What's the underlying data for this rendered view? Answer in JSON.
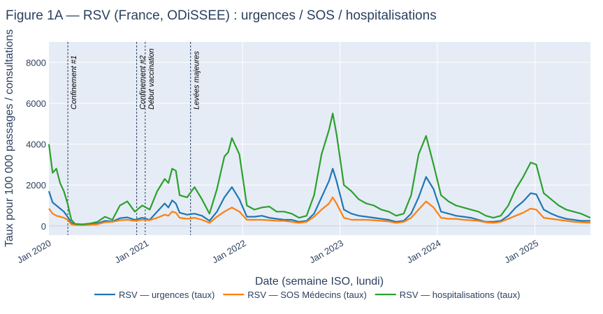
{
  "chart_data": {
    "type": "line",
    "title": "Figure 1A — RSV (France, ODiSSEE) : urgences / SOS / hospitalisations",
    "xlabel": "Date (semaine ISO, lundi)",
    "ylabel": "Taux pour 100 000 passages / consultations",
    "xlim": [
      "2020-01-06",
      "2025-07-28"
    ],
    "ylim": [
      -450,
      9000
    ],
    "y_ticks": [
      0,
      2000,
      4000,
      6000,
      8000
    ],
    "x_ticks": [
      {
        "date": "2020-01-01",
        "label": "Jan 2020"
      },
      {
        "date": "2021-01-01",
        "label": "Jan 2021"
      },
      {
        "date": "2022-01-01",
        "label": "Jan 2022"
      },
      {
        "date": "2023-01-01",
        "label": "Jan 2023"
      },
      {
        "date": "2024-01-01",
        "label": "Jan 2024"
      },
      {
        "date": "2025-01-01",
        "label": "Jan 2025"
      }
    ],
    "grid": true,
    "legend_position": "bottom",
    "vlines": [
      {
        "date": "2020-03-17",
        "label": "Confinement #1"
      },
      {
        "date": "2020-11-30",
        "label": "Confinement #2"
      },
      {
        "date": "2021-01-01",
        "label": "Début vaccination"
      },
      {
        "date": "2021-06-20",
        "label": "Levées majeures"
      }
    ],
    "series": [
      {
        "name": "RSV — urgences (taux)",
        "color": "#1f77b4",
        "points": [
          [
            "2020-01-06",
            1700
          ],
          [
            "2020-01-20",
            1150
          ],
          [
            "2020-02-03",
            1000
          ],
          [
            "2020-02-17",
            850
          ],
          [
            "2020-03-02",
            700
          ],
          [
            "2020-03-16",
            450
          ],
          [
            "2020-03-30",
            150
          ],
          [
            "2020-04-13",
            90
          ],
          [
            "2020-05-11",
            60
          ],
          [
            "2020-06-08",
            90
          ],
          [
            "2020-07-06",
            120
          ],
          [
            "2020-08-03",
            250
          ],
          [
            "2020-08-31",
            220
          ],
          [
            "2020-09-28",
            380
          ],
          [
            "2020-10-26",
            420
          ],
          [
            "2020-11-23",
            300
          ],
          [
            "2020-12-21",
            400
          ],
          [
            "2021-01-18",
            300
          ],
          [
            "2021-02-15",
            700
          ],
          [
            "2021-03-15",
            1100
          ],
          [
            "2021-03-29",
            900
          ],
          [
            "2021-04-12",
            1250
          ],
          [
            "2021-04-26",
            1100
          ],
          [
            "2021-05-10",
            650
          ],
          [
            "2021-06-07",
            550
          ],
          [
            "2021-07-05",
            600
          ],
          [
            "2021-08-02",
            500
          ],
          [
            "2021-08-30",
            250
          ],
          [
            "2021-09-27",
            700
          ],
          [
            "2021-10-25",
            1400
          ],
          [
            "2021-11-22",
            1900
          ],
          [
            "2021-12-20",
            1300
          ],
          [
            "2022-01-17",
            450
          ],
          [
            "2022-02-14",
            450
          ],
          [
            "2022-03-14",
            500
          ],
          [
            "2022-04-11",
            400
          ],
          [
            "2022-05-09",
            350
          ],
          [
            "2022-06-06",
            300
          ],
          [
            "2022-07-04",
            300
          ],
          [
            "2022-08-01",
            200
          ],
          [
            "2022-08-29",
            250
          ],
          [
            "2022-09-26",
            600
          ],
          [
            "2022-10-24",
            1400
          ],
          [
            "2022-11-21",
            2200
          ],
          [
            "2022-12-05",
            2800
          ],
          [
            "2022-12-19",
            2200
          ],
          [
            "2023-01-16",
            800
          ],
          [
            "2023-02-13",
            600
          ],
          [
            "2023-03-13",
            500
          ],
          [
            "2023-04-10",
            450
          ],
          [
            "2023-05-08",
            400
          ],
          [
            "2023-06-05",
            350
          ],
          [
            "2023-07-03",
            300
          ],
          [
            "2023-07-31",
            200
          ],
          [
            "2023-08-28",
            250
          ],
          [
            "2023-09-25",
            600
          ],
          [
            "2023-10-23",
            1400
          ],
          [
            "2023-11-20",
            2400
          ],
          [
            "2023-12-18",
            1800
          ],
          [
            "2024-01-15",
            700
          ],
          [
            "2024-02-12",
            600
          ],
          [
            "2024-03-11",
            500
          ],
          [
            "2024-04-08",
            450
          ],
          [
            "2024-05-06",
            400
          ],
          [
            "2024-06-03",
            300
          ],
          [
            "2024-07-01",
            200
          ],
          [
            "2024-07-29",
            200
          ],
          [
            "2024-08-26",
            250
          ],
          [
            "2024-09-23",
            500
          ],
          [
            "2024-10-21",
            900
          ],
          [
            "2024-11-18",
            1200
          ],
          [
            "2024-12-16",
            1600
          ],
          [
            "2025-01-06",
            1550
          ],
          [
            "2025-02-03",
            800
          ],
          [
            "2025-03-03",
            600
          ],
          [
            "2025-03-31",
            450
          ],
          [
            "2025-04-28",
            350
          ],
          [
            "2025-05-26",
            300
          ],
          [
            "2025-06-23",
            250
          ],
          [
            "2025-07-28",
            250
          ]
        ]
      },
      {
        "name": "RSV — SOS Médecins (taux)",
        "color": "#ff7f0e",
        "points": [
          [
            "2020-01-06",
            850
          ],
          [
            "2020-01-20",
            600
          ],
          [
            "2020-02-03",
            500
          ],
          [
            "2020-02-17",
            450
          ],
          [
            "2020-03-02",
            400
          ],
          [
            "2020-03-16",
            300
          ],
          [
            "2020-03-30",
            80
          ],
          [
            "2020-04-13",
            50
          ],
          [
            "2020-05-11",
            40
          ],
          [
            "2020-06-08",
            60
          ],
          [
            "2020-07-06",
            80
          ],
          [
            "2020-08-03",
            180
          ],
          [
            "2020-08-31",
            200
          ],
          [
            "2020-09-28",
            280
          ],
          [
            "2020-10-26",
            300
          ],
          [
            "2020-11-23",
            250
          ],
          [
            "2020-12-21",
            300
          ],
          [
            "2021-01-18",
            280
          ],
          [
            "2021-02-15",
            400
          ],
          [
            "2021-03-15",
            550
          ],
          [
            "2021-03-29",
            500
          ],
          [
            "2021-04-12",
            700
          ],
          [
            "2021-04-26",
            650
          ],
          [
            "2021-05-10",
            400
          ],
          [
            "2021-06-07",
            350
          ],
          [
            "2021-07-05",
            400
          ],
          [
            "2021-08-02",
            300
          ],
          [
            "2021-08-30",
            150
          ],
          [
            "2021-09-27",
            450
          ],
          [
            "2021-10-25",
            700
          ],
          [
            "2021-11-22",
            900
          ],
          [
            "2021-12-20",
            700
          ],
          [
            "2022-01-17",
            300
          ],
          [
            "2022-02-14",
            300
          ],
          [
            "2022-03-14",
            300
          ],
          [
            "2022-04-11",
            280
          ],
          [
            "2022-05-09",
            250
          ],
          [
            "2022-06-06",
            250
          ],
          [
            "2022-07-04",
            200
          ],
          [
            "2022-08-01",
            150
          ],
          [
            "2022-08-29",
            200
          ],
          [
            "2022-09-26",
            450
          ],
          [
            "2022-10-24",
            800
          ],
          [
            "2022-11-21",
            1100
          ],
          [
            "2022-12-05",
            1400
          ],
          [
            "2022-12-19",
            1100
          ],
          [
            "2023-01-16",
            400
          ],
          [
            "2023-02-13",
            300
          ],
          [
            "2023-03-13",
            300
          ],
          [
            "2023-04-10",
            300
          ],
          [
            "2023-05-08",
            280
          ],
          [
            "2023-06-05",
            250
          ],
          [
            "2023-07-03",
            220
          ],
          [
            "2023-07-31",
            150
          ],
          [
            "2023-08-28",
            200
          ],
          [
            "2023-09-25",
            400
          ],
          [
            "2023-10-23",
            800
          ],
          [
            "2023-11-20",
            1200
          ],
          [
            "2023-12-18",
            900
          ],
          [
            "2024-01-15",
            400
          ],
          [
            "2024-02-12",
            350
          ],
          [
            "2024-03-11",
            350
          ],
          [
            "2024-04-08",
            300
          ],
          [
            "2024-05-06",
            280
          ],
          [
            "2024-06-03",
            250
          ],
          [
            "2024-07-01",
            180
          ],
          [
            "2024-07-29",
            150
          ],
          [
            "2024-08-26",
            200
          ],
          [
            "2024-09-23",
            350
          ],
          [
            "2024-10-21",
            500
          ],
          [
            "2024-11-18",
            650
          ],
          [
            "2024-12-16",
            850
          ],
          [
            "2025-01-06",
            800
          ],
          [
            "2025-02-03",
            400
          ],
          [
            "2025-03-03",
            350
          ],
          [
            "2025-03-31",
            300
          ],
          [
            "2025-04-28",
            250
          ],
          [
            "2025-05-26",
            200
          ],
          [
            "2025-06-23",
            180
          ],
          [
            "2025-07-28",
            150
          ]
        ]
      },
      {
        "name": "RSV — hospitalisations (taux)",
        "color": "#2ca02c",
        "points": [
          [
            "2020-01-06",
            4000
          ],
          [
            "2020-01-20",
            2600
          ],
          [
            "2020-02-03",
            2800
          ],
          [
            "2020-02-17",
            2100
          ],
          [
            "2020-03-02",
            1700
          ],
          [
            "2020-03-16",
            1100
          ],
          [
            "2020-03-30",
            300
          ],
          [
            "2020-04-13",
            100
          ],
          [
            "2020-05-11",
            80
          ],
          [
            "2020-06-08",
            120
          ],
          [
            "2020-07-06",
            200
          ],
          [
            "2020-08-03",
            450
          ],
          [
            "2020-08-31",
            300
          ],
          [
            "2020-09-28",
            1000
          ],
          [
            "2020-10-26",
            1200
          ],
          [
            "2020-11-23",
            700
          ],
          [
            "2020-12-21",
            1000
          ],
          [
            "2021-01-18",
            800
          ],
          [
            "2021-02-15",
            1700
          ],
          [
            "2021-03-15",
            2300
          ],
          [
            "2021-03-29",
            2100
          ],
          [
            "2021-04-12",
            2800
          ],
          [
            "2021-04-26",
            2700
          ],
          [
            "2021-05-10",
            1500
          ],
          [
            "2021-06-07",
            1400
          ],
          [
            "2021-07-05",
            1900
          ],
          [
            "2021-08-02",
            1300
          ],
          [
            "2021-08-30",
            600
          ],
          [
            "2021-09-27",
            1800
          ],
          [
            "2021-10-25",
            3400
          ],
          [
            "2021-11-08",
            3600
          ],
          [
            "2021-11-22",
            4300
          ],
          [
            "2021-12-20",
            3500
          ],
          [
            "2022-01-17",
            1000
          ],
          [
            "2022-02-14",
            800
          ],
          [
            "2022-03-14",
            900
          ],
          [
            "2022-04-11",
            950
          ],
          [
            "2022-05-09",
            700
          ],
          [
            "2022-06-06",
            700
          ],
          [
            "2022-07-04",
            600
          ],
          [
            "2022-08-01",
            400
          ],
          [
            "2022-08-29",
            500
          ],
          [
            "2022-09-26",
            1500
          ],
          [
            "2022-10-24",
            3500
          ],
          [
            "2022-11-21",
            4700
          ],
          [
            "2022-12-05",
            5500
          ],
          [
            "2022-12-19",
            4500
          ],
          [
            "2023-01-16",
            2000
          ],
          [
            "2023-02-13",
            1700
          ],
          [
            "2023-03-13",
            1300
          ],
          [
            "2023-04-10",
            1100
          ],
          [
            "2023-05-08",
            1000
          ],
          [
            "2023-06-05",
            800
          ],
          [
            "2023-07-03",
            700
          ],
          [
            "2023-07-31",
            500
          ],
          [
            "2023-08-28",
            600
          ],
          [
            "2023-09-25",
            1500
          ],
          [
            "2023-10-23",
            3500
          ],
          [
            "2023-11-20",
            4400
          ],
          [
            "2023-12-18",
            3000
          ],
          [
            "2024-01-15",
            1500
          ],
          [
            "2024-02-12",
            1200
          ],
          [
            "2024-03-11",
            1000
          ],
          [
            "2024-04-08",
            900
          ],
          [
            "2024-05-06",
            800
          ],
          [
            "2024-06-03",
            700
          ],
          [
            "2024-07-01",
            500
          ],
          [
            "2024-07-29",
            400
          ],
          [
            "2024-08-26",
            500
          ],
          [
            "2024-09-23",
            1000
          ],
          [
            "2024-10-21",
            1800
          ],
          [
            "2024-11-18",
            2400
          ],
          [
            "2024-12-16",
            3100
          ],
          [
            "2025-01-06",
            3000
          ],
          [
            "2025-02-03",
            1600
          ],
          [
            "2025-03-03",
            1300
          ],
          [
            "2025-03-31",
            1000
          ],
          [
            "2025-04-28",
            800
          ],
          [
            "2025-05-26",
            700
          ],
          [
            "2025-06-23",
            600
          ],
          [
            "2025-07-28",
            400
          ]
        ]
      }
    ]
  }
}
